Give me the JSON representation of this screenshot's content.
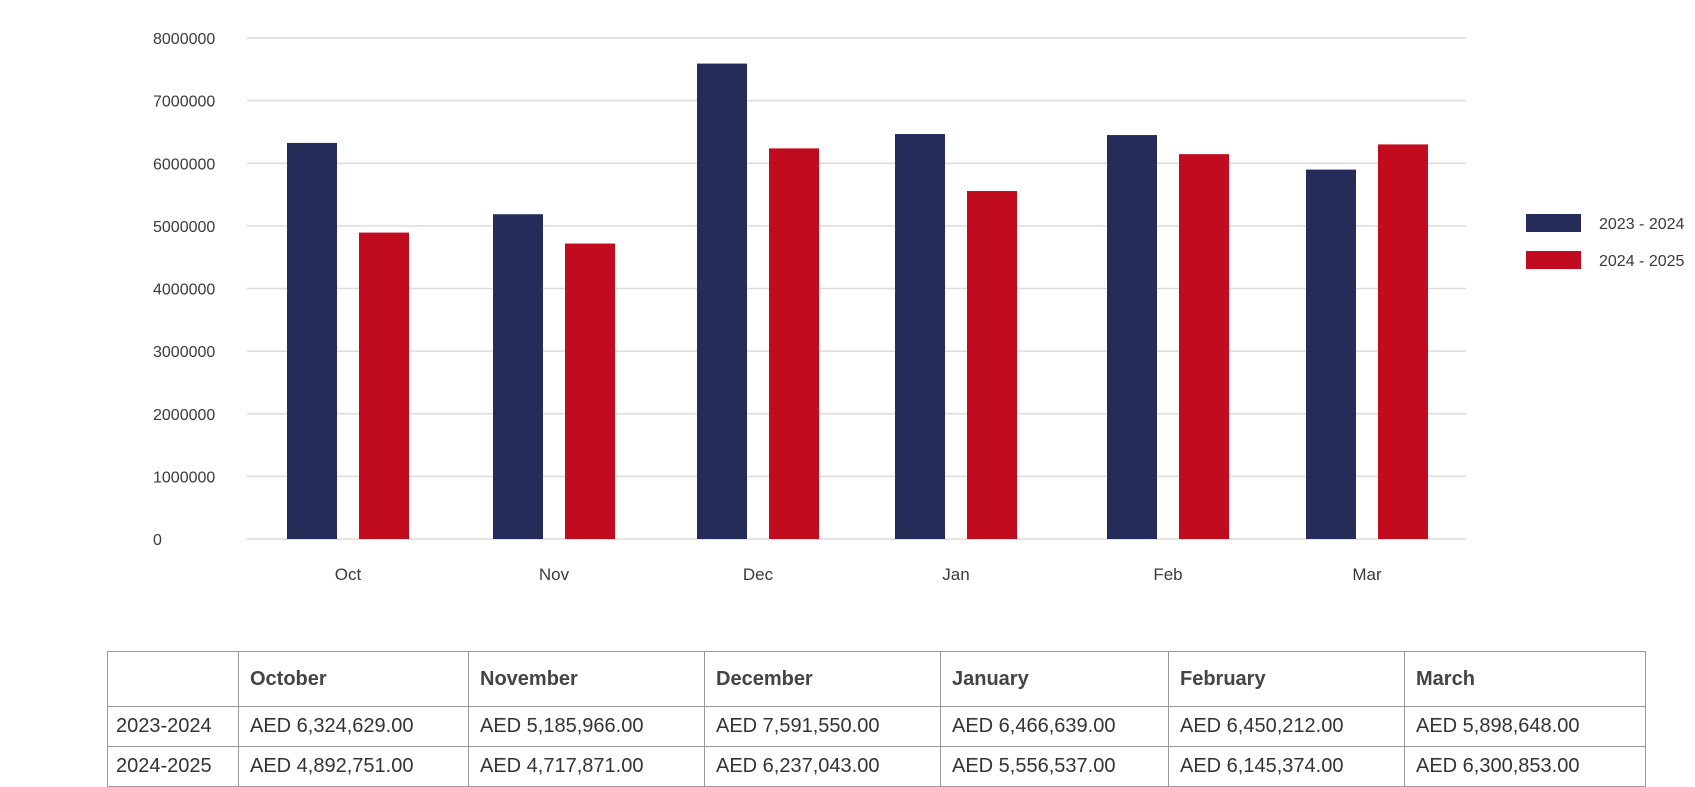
{
  "chart_data": {
    "type": "bar",
    "categories": [
      "Oct",
      "Nov",
      "Dec",
      "Jan",
      "Feb",
      "Mar"
    ],
    "series": [
      {
        "name": "2023 - 2024",
        "color": "#252c5a",
        "values": [
          6324629,
          5185966,
          7591550,
          6466639,
          6450212,
          5898648
        ]
      },
      {
        "name": "2024 - 2025",
        "color": "#c00c1e",
        "values": [
          4892751,
          4717871,
          6237043,
          5556537,
          6145374,
          6300853
        ]
      }
    ],
    "ylim": [
      0,
      8000000
    ],
    "yticks": [
      "0",
      "1000000",
      "2000000",
      "3000000",
      "4000000",
      "5000000",
      "6000000",
      "7000000",
      "8000000"
    ],
    "grid": true,
    "legend_position": "right"
  },
  "table": {
    "headers": [
      "",
      "October",
      "November",
      "December",
      "January",
      "February",
      "March"
    ],
    "rows": [
      {
        "label": "2023-2024",
        "cells": [
          "AED 6,324,629.00",
          "AED 5,185,966.00",
          "AED 7,591,550.00",
          "AED 6,466,639.00",
          "AED 6,450,212.00",
          "AED 5,898,648.00"
        ]
      },
      {
        "label": "2024-2025",
        "cells": [
          "AED 4,892,751.00",
          "AED 4,717,871.00",
          "AED 6,237,043.00",
          "AED 5,556,537.00",
          "AED 6,145,374.00",
          "AED 6,300,853.00"
        ]
      }
    ]
  }
}
